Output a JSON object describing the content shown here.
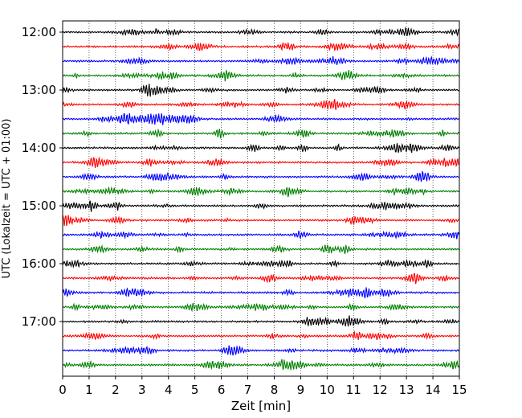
{
  "chart_data": {
    "type": "line",
    "title": "",
    "xlabel": "Zeit  [min]",
    "ylabel": "UTC (Lokalzeit = UTC + 01:00)",
    "xlim": [
      0,
      15
    ],
    "x_ticks": [
      "0",
      "1",
      "2",
      "3",
      "4",
      "5",
      "6",
      "7",
      "8",
      "9",
      "10",
      "11",
      "12",
      "13",
      "14",
      "15"
    ],
    "y_ticks": [
      "12:00",
      "13:00",
      "14:00",
      "15:00",
      "16:00",
      "17:00"
    ],
    "grid": "vertical dotted",
    "trace_interval_min": 15,
    "trace_colors": [
      "#000000",
      "#ff0000",
      "#0000ff",
      "#008000"
    ],
    "trace_starts": [
      "12:00",
      "12:15",
      "12:30",
      "12:45",
      "13:00",
      "13:15",
      "13:30",
      "13:45",
      "14:00",
      "14:15",
      "14:30",
      "14:45",
      "15:00",
      "15:15",
      "15:30",
      "15:45",
      "16:00",
      "16:15",
      "16:30",
      "16:45",
      "17:00",
      "17:15",
      "17:30",
      "17:45"
    ]
  }
}
